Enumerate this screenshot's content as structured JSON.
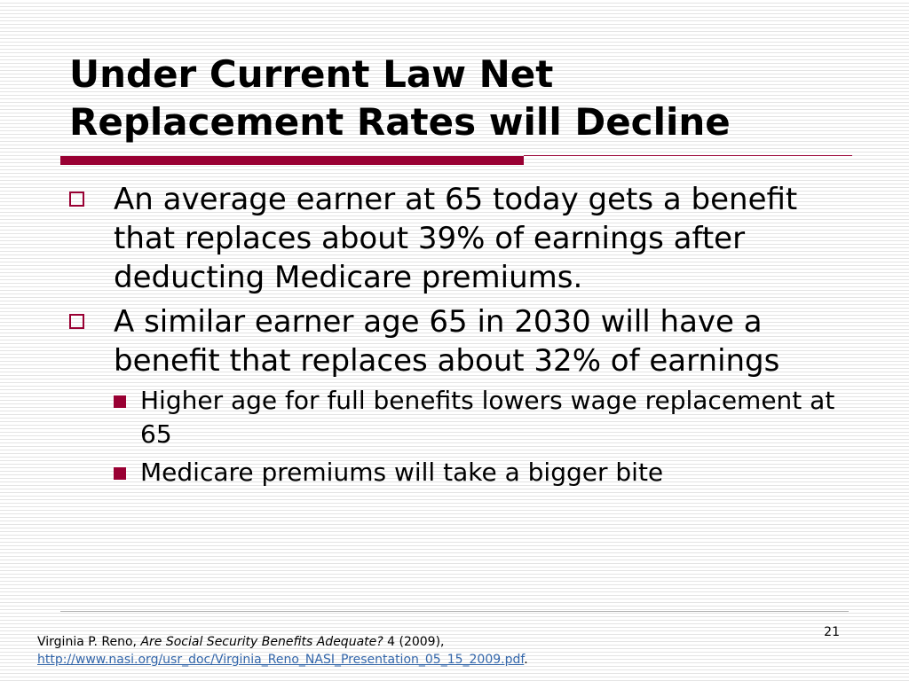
{
  "slide": {
    "title_line1": "Under Current Law Net",
    "title_line2": "Replacement Rates will Decline",
    "bullets": [
      {
        "text": "An average earner at 65 today gets a benefit  that replaces about 39% of earnings after deducting Medicare premiums."
      },
      {
        "text": "A similar earner age 65 in 2030 will have a benefit that replaces about 32% of earnings"
      }
    ],
    "sub_bullets": [
      {
        "text": "Higher age for full benefits lowers wage replacement at 65"
      },
      {
        "text": "Medicare premiums will take a bigger bite"
      }
    ],
    "slide_number": "21",
    "footnote": {
      "author": "Virginia P. Reno, ",
      "work": "Are Social Security  Benefits Adequate?",
      "pages": " 4 (2009),",
      "url": "http://www.nasi.org/usr_doc/Virginia_Reno_NASI_Presentation_05_15_2009.pdf",
      "end": "."
    },
    "colors": {
      "accent": "#990033",
      "link": "#3366aa"
    },
    "icons": {
      "level1_bullet": "hollow-square-icon",
      "level2_bullet": "filled-square-icon"
    }
  }
}
